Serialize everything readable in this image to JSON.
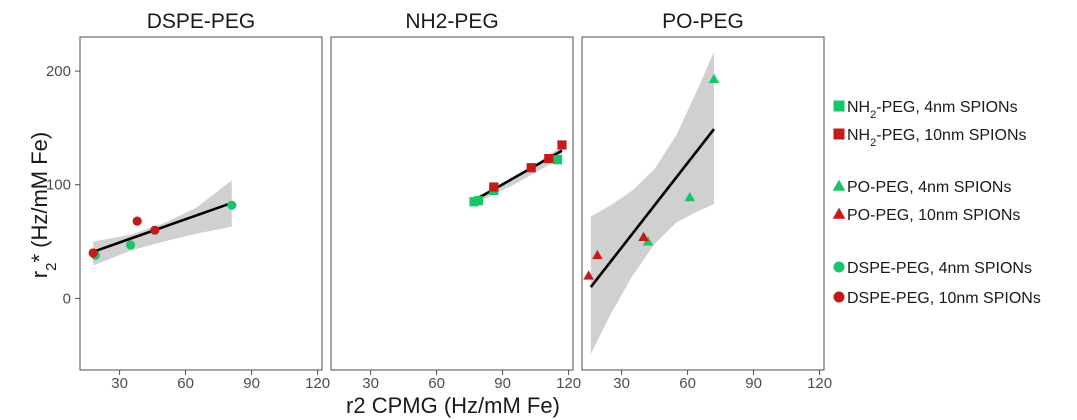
{
  "chart_data": {
    "type": "scatter",
    "xlabel": "r2 CPMG (Hz/mM Fe)",
    "ylabel": {
      "base": "r",
      "sub": "2",
      "rest": "* (Hz/mM Fe)"
    },
    "xlim": [
      12,
      122
    ],
    "ylim": [
      -63,
      230
    ],
    "xticks": [
      "30",
      "60",
      "90",
      "120"
    ],
    "yticks": [
      "0",
      "100",
      "200"
    ],
    "grid": false,
    "legend_position": "right",
    "colors": {
      "green": "#19c46a",
      "red": "#c41a1a",
      "band": "#d0d0d0",
      "fit": "#000000"
    },
    "panels": [
      {
        "title": "DSPE-PEG",
        "fit": {
          "x0": 18,
          "y0": 41,
          "x1": 81,
          "y1": 84
        },
        "band_upper": [
          [
            18,
            50
          ],
          [
            35,
            56
          ],
          [
            50,
            66
          ],
          [
            65,
            80
          ],
          [
            81,
            104
          ]
        ],
        "band_lower": [
          [
            18,
            29
          ],
          [
            35,
            42
          ],
          [
            50,
            50
          ],
          [
            65,
            57
          ],
          [
            81,
            63
          ]
        ],
        "series": [
          {
            "legend": 4,
            "marker": "circle",
            "color": "green",
            "points": [
              [
                19,
                38
              ],
              [
                35,
                47
              ],
              [
                81,
                82
              ]
            ]
          },
          {
            "legend": 5,
            "marker": "circle",
            "color": "red",
            "points": [
              [
                18,
                40
              ],
              [
                38,
                68
              ],
              [
                46,
                60
              ]
            ]
          }
        ]
      },
      {
        "title": "NH2-PEG",
        "fit": {
          "x0": 76,
          "y0": 85,
          "x1": 117,
          "y1": 130
        },
        "band_upper": [
          [
            76,
            88
          ],
          [
            96,
            106
          ],
          [
            117,
            134
          ]
        ],
        "band_lower": [
          [
            76,
            82
          ],
          [
            96,
            101
          ],
          [
            117,
            124
          ]
        ],
        "series": [
          {
            "legend": 0,
            "marker": "square",
            "color": "green",
            "points": [
              [
                77,
                85
              ],
              [
                79,
                86
              ],
              [
                86,
                95
              ],
              [
                115,
                122
              ]
            ]
          },
          {
            "legend": 1,
            "marker": "square",
            "color": "red",
            "points": [
              [
                86,
                98
              ],
              [
                103,
                115
              ],
              [
                111,
                123
              ],
              [
                117,
                135
              ]
            ]
          }
        ]
      },
      {
        "title": "PO-PEG",
        "fit": {
          "x0": 16,
          "y0": 10,
          "x1": 72,
          "y1": 149
        },
        "band_upper": [
          [
            16,
            72
          ],
          [
            25,
            82
          ],
          [
            35,
            95
          ],
          [
            45,
            114
          ],
          [
            55,
            144
          ],
          [
            65,
            186
          ],
          [
            72,
            217
          ]
        ],
        "band_lower": [
          [
            16,
            -49
          ],
          [
            25,
            -14
          ],
          [
            35,
            20
          ],
          [
            45,
            48
          ],
          [
            55,
            67
          ],
          [
            65,
            77
          ],
          [
            72,
            83
          ]
        ],
        "series": [
          {
            "legend": 2,
            "marker": "triangle",
            "color": "green",
            "points": [
              [
                42,
                50
              ],
              [
                61,
                89
              ],
              [
                72,
                193
              ]
            ]
          },
          {
            "legend": 3,
            "marker": "triangle",
            "color": "red",
            "points": [
              [
                15,
                20
              ],
              [
                19,
                38
              ],
              [
                40,
                54
              ]
            ]
          }
        ]
      }
    ],
    "legend": [
      {
        "marker": "square",
        "color": "green",
        "pre": "NH",
        "sub": "2",
        "post": "-PEG, 4nm SPIONs"
      },
      {
        "marker": "square",
        "color": "red",
        "pre": "NH",
        "sub": "2",
        "post": "-PEG, 10nm SPIONs"
      },
      {
        "marker": "triangle",
        "color": "green",
        "pre": "PO-PEG, 4nm SPIONs",
        "sub": "",
        "post": ""
      },
      {
        "marker": "triangle",
        "color": "red",
        "pre": "PO-PEG, 10nm SPIONs",
        "sub": "",
        "post": ""
      },
      {
        "marker": "circle",
        "color": "green",
        "pre": "DSPE-PEG, 4nm SPIONs",
        "sub": "",
        "post": ""
      },
      {
        "marker": "circle",
        "color": "red",
        "pre": "DSPE-PEG, 10nm SPIONs",
        "sub": "",
        "post": ""
      }
    ]
  }
}
